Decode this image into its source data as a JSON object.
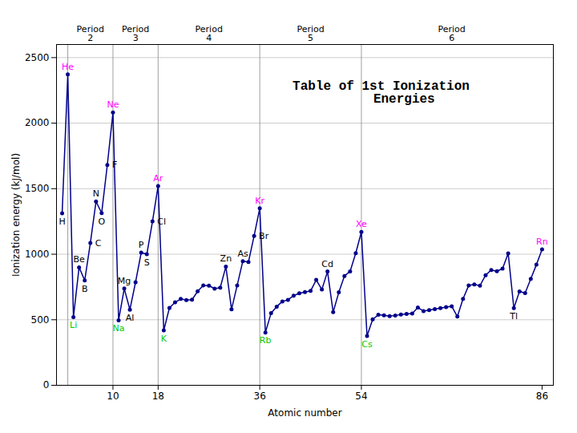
{
  "chart_data": {
    "type": "line",
    "title": "Table of 1st Ionization\n      Energies",
    "xlabel": "Atomic number",
    "ylabel": "Ionization energy (kJ/mol)",
    "x": [
      1,
      2,
      3,
      4,
      5,
      6,
      7,
      8,
      9,
      10,
      11,
      12,
      13,
      14,
      15,
      16,
      17,
      18,
      19,
      20,
      21,
      22,
      23,
      24,
      25,
      26,
      27,
      28,
      29,
      30,
      31,
      32,
      33,
      34,
      35,
      36,
      37,
      38,
      39,
      40,
      41,
      42,
      43,
      44,
      45,
      46,
      47,
      48,
      49,
      50,
      51,
      52,
      53,
      54,
      55,
      56,
      57,
      58,
      59,
      60,
      61,
      62,
      63,
      64,
      65,
      66,
      67,
      68,
      69,
      70,
      71,
      72,
      73,
      74,
      75,
      76,
      77,
      78,
      79,
      80,
      81,
      82,
      83,
      84,
      85,
      86
    ],
    "values": [
      1312,
      2372,
      520,
      900,
      800,
      1086,
      1402,
      1314,
      1681,
      2081,
      496,
      738,
      577,
      786,
      1012,
      1000,
      1251,
      1521,
      419,
      590,
      633,
      659,
      650,
      653,
      717,
      762,
      760,
      737,
      745,
      906,
      579,
      762,
      947,
      941,
      1140,
      1351,
      403,
      550,
      600,
      640,
      652,
      684,
      702,
      711,
      720,
      804,
      731,
      868,
      558,
      709,
      834,
      869,
      1008,
      1170,
      376,
      503,
      538,
      534,
      527,
      533,
      540,
      545,
      547,
      593,
      566,
      573,
      581,
      589,
      597,
      603,
      524,
      659,
      761,
      770,
      760,
      840,
      880,
      870,
      890,
      1007,
      589,
      716,
      703,
      812,
      920,
      1037
    ],
    "color": "#00008B",
    "marker": "circle",
    "xlim": [
      0,
      88
    ],
    "xticks": [
      10,
      18,
      36,
      54,
      86
    ],
    "ylim": [
      0,
      2600
    ],
    "yticks": [
      0,
      500,
      1000,
      1500,
      2000,
      2500
    ],
    "grid": "y",
    "vlines": [
      2,
      10,
      18,
      36,
      54
    ],
    "period_labels": [
      {
        "x": 6,
        "text": "Period\n2"
      },
      {
        "x": 14,
        "text": "Period\n3"
      },
      {
        "x": 27,
        "text": "Period\n4"
      },
      {
        "x": 45,
        "text": "Period\n5"
      },
      {
        "x": 70,
        "text": "Period\n6"
      }
    ],
    "annotations": [
      {
        "text": "H",
        "x": 1,
        "color": "#000000"
      },
      {
        "text": "He",
        "x": 2,
        "color": "#ff00ff"
      },
      {
        "text": "Li",
        "x": 3,
        "color": "#00cc00"
      },
      {
        "text": "Be",
        "x": 4,
        "color": "#000000"
      },
      {
        "text": "B",
        "x": 5,
        "color": "#000000"
      },
      {
        "text": "C",
        "x": 6,
        "color": "#000000"
      },
      {
        "text": "N",
        "x": 7,
        "color": "#000000"
      },
      {
        "text": "O",
        "x": 8,
        "color": "#000000"
      },
      {
        "text": "F",
        "x": 9,
        "color": "#000000"
      },
      {
        "text": "Ne",
        "x": 10,
        "color": "#ff00ff"
      },
      {
        "text": "Na",
        "x": 11,
        "color": "#00cc00"
      },
      {
        "text": "Mg",
        "x": 12,
        "color": "#000000"
      },
      {
        "text": "Al",
        "x": 13,
        "color": "#000000"
      },
      {
        "text": "P",
        "x": 15,
        "color": "#000000"
      },
      {
        "text": "S",
        "x": 16,
        "color": "#000000"
      },
      {
        "text": "Cl",
        "x": 17,
        "color": "#000000"
      },
      {
        "text": "Ar",
        "x": 18,
        "color": "#ff00ff"
      },
      {
        "text": "K",
        "x": 19,
        "color": "#00cc00"
      },
      {
        "text": "Zn",
        "x": 30,
        "color": "#000000"
      },
      {
        "text": "As",
        "x": 33,
        "color": "#000000"
      },
      {
        "text": "Br",
        "x": 35,
        "color": "#000000"
      },
      {
        "text": "Kr",
        "x": 36,
        "color": "#ff00ff"
      },
      {
        "text": "Rb",
        "x": 37,
        "color": "#00cc00"
      },
      {
        "text": "Cd",
        "x": 48,
        "color": "#000000"
      },
      {
        "text": "Xe",
        "x": 54,
        "color": "#ff00ff"
      },
      {
        "text": "Cs",
        "x": 55,
        "color": "#00cc00"
      },
      {
        "text": "Tl",
        "x": 81,
        "color": "#000000"
      },
      {
        "text": "Rn",
        "x": 86,
        "color": "#ff00ff"
      }
    ]
  }
}
